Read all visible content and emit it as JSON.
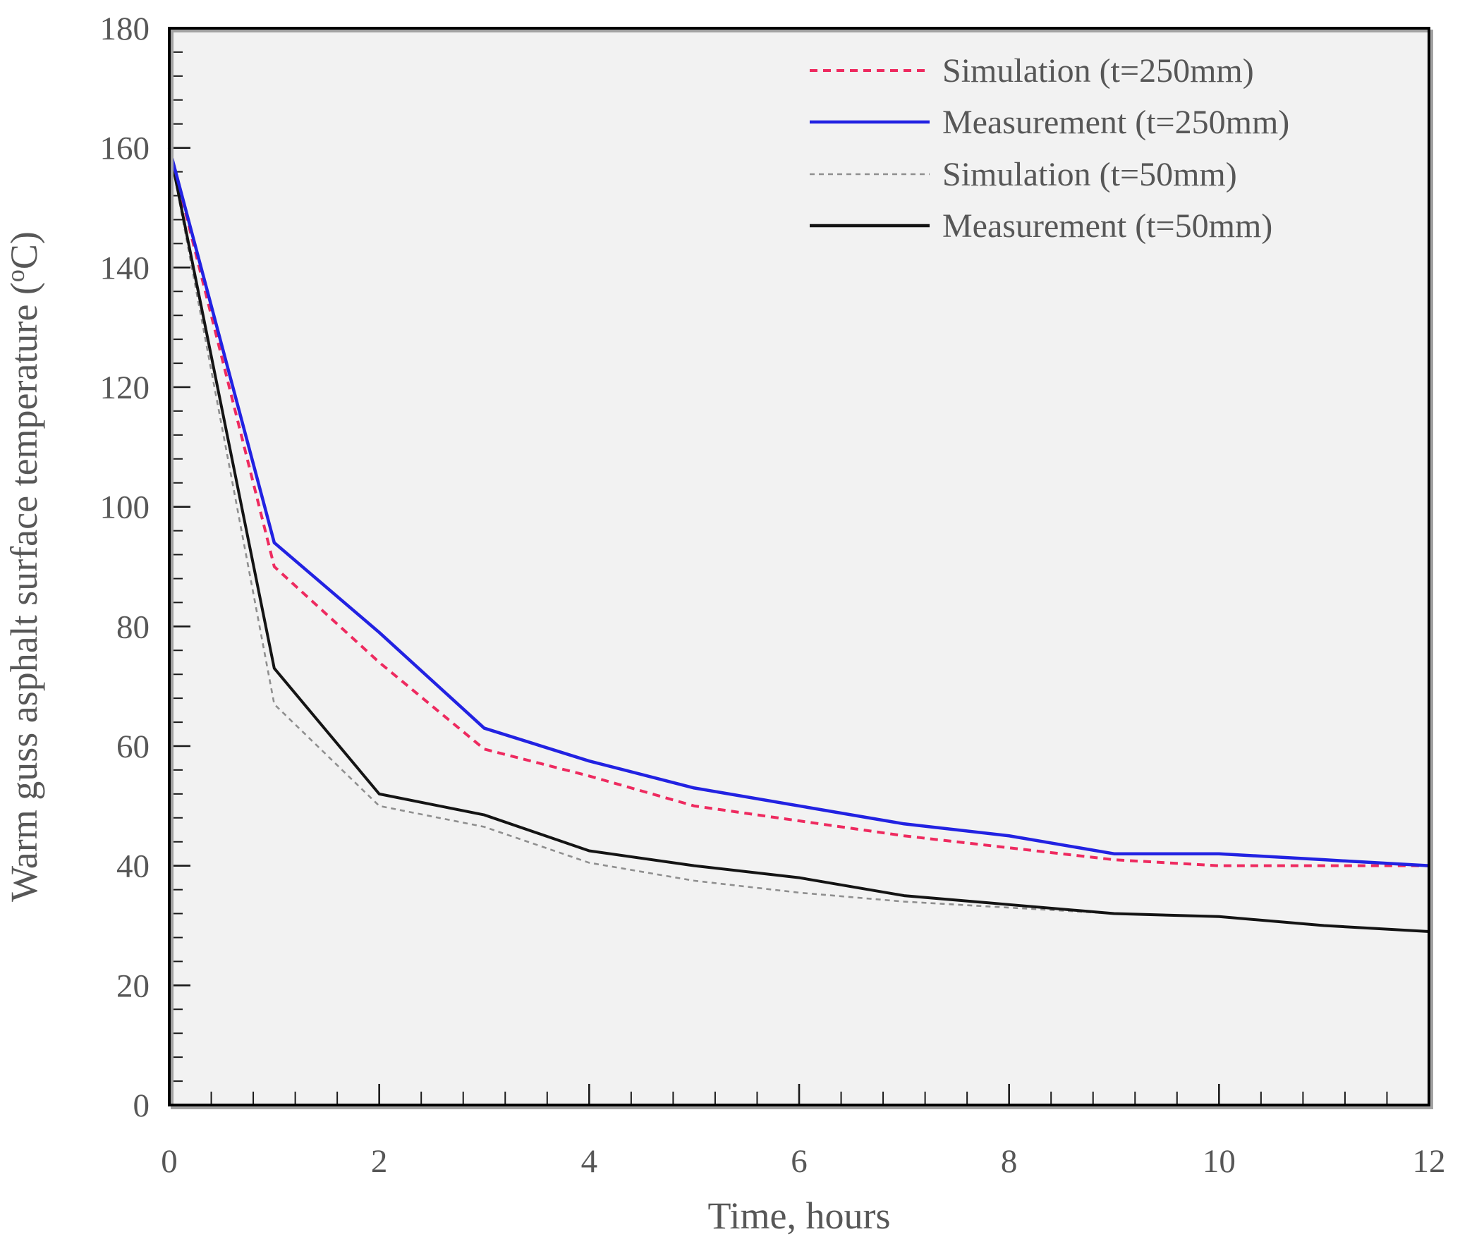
{
  "figure": {
    "x_axis": {
      "title": "Time, hours",
      "tick_labels": [
        "0",
        "2",
        "4",
        "6",
        "8",
        "10",
        "12"
      ],
      "tick_values": [
        0,
        2,
        4,
        6,
        8,
        10,
        12
      ],
      "min": 0,
      "max": 12,
      "minor_step": 0.4
    },
    "y_axis": {
      "title_main": "Warm guss asphalt surface temperature (",
      "title_sup": "o",
      "title_tail": "C)",
      "tick_labels": [
        "0",
        "20",
        "40",
        "60",
        "80",
        "100",
        "120",
        "140",
        "160",
        "180"
      ],
      "tick_values": [
        0,
        20,
        40,
        60,
        80,
        100,
        120,
        140,
        160,
        180
      ],
      "min": 0,
      "max": 180,
      "minor_step": 4
    },
    "colors": {
      "plot_background": "#f2f2f2",
      "frame": "#000000",
      "frame_shadow": "#a3a3a3",
      "text": "#575757",
      "sim_250": "#ee2a5f",
      "meas_250": "#2222e2",
      "sim_50": "#8f8f8f",
      "meas_50": "#141414"
    }
  },
  "chart_data": {
    "type": "line",
    "title": "",
    "xlabel": "Time, hours",
    "ylabel": "Warm guss asphalt surface temperature (oC)",
    "xlim": [
      0,
      12
    ],
    "ylim": [
      0,
      180
    ],
    "grid": false,
    "legend_position": "top-right-inside",
    "x": [
      0,
      1,
      2,
      3,
      4,
      5,
      6,
      7,
      8,
      9,
      10,
      11,
      12
    ],
    "series": [
      {
        "name": "Simulation (t=250mm)",
        "color": "#ee2a5f",
        "style": "dashed",
        "values": [
          160,
          90,
          74,
          59.5,
          55,
          50,
          47.5,
          45,
          43,
          41,
          40,
          40,
          40
        ]
      },
      {
        "name": "Measurement (t=250mm)",
        "color": "#2222e2",
        "style": "solid",
        "values": [
          160,
          94,
          79,
          63,
          57.5,
          53,
          50,
          47,
          45,
          42,
          42,
          41,
          40
        ]
      },
      {
        "name": "Simulation (t=50mm)",
        "color": "#8f8f8f",
        "style": "dashed",
        "values": [
          160,
          67,
          50,
          46.5,
          40.5,
          37.5,
          35.5,
          34,
          33,
          32,
          31.5,
          30,
          29
        ]
      },
      {
        "name": "Measurement (t=50mm)",
        "color": "#141414",
        "style": "solid",
        "values": [
          160,
          73,
          52,
          48.5,
          42.5,
          40,
          38,
          35,
          33.5,
          32,
          31.5,
          30,
          29
        ]
      }
    ]
  }
}
